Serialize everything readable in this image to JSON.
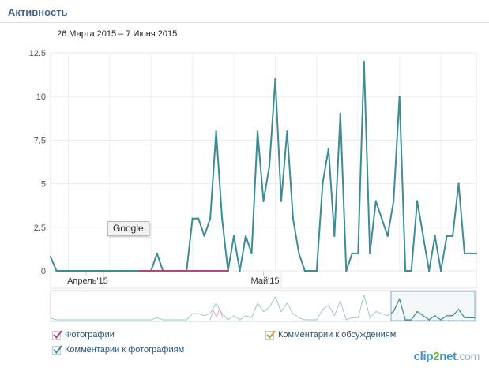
{
  "header": {
    "title": "Активность"
  },
  "date_range": "26 Марта 2015 – 7 Июня 2015",
  "tooltip": "Google",
  "legend": [
    {
      "label": "Фотографии",
      "color": "#b5467f",
      "checked": true
    },
    {
      "label": "Комментарии к фотографиям",
      "color": "#3e8c95",
      "checked": true
    },
    {
      "label": "Комментарии к обсуждениям",
      "color": "#c99e3c",
      "checked": true
    }
  ],
  "watermark": {
    "a": "clip",
    "b": "2",
    "c": "net",
    "d": ".com"
  },
  "chart_data": {
    "type": "line",
    "y_ticks": [
      "0",
      "2.5",
      "5",
      "7.5",
      "10",
      "12.5"
    ],
    "ylim": [
      0,
      12.5
    ],
    "x_ticks": [
      {
        "label": "Апрель'15",
        "day": 6
      },
      {
        "label": "Май'15",
        "day": 36
      }
    ],
    "x_start_day": 0,
    "x_end_day": 72,
    "grid": true,
    "series": [
      {
        "name": "Комментарии к фотографиям",
        "color": "#3e8c95",
        "x": [
          0,
          1,
          2,
          3,
          4,
          5,
          6,
          7,
          8,
          9,
          10,
          11,
          12,
          13,
          14,
          15,
          16,
          17,
          18,
          19,
          20,
          21,
          22,
          23,
          24,
          25,
          26,
          27,
          28,
          29,
          30,
          31,
          32,
          33,
          34,
          35,
          36,
          37,
          38,
          39,
          40,
          41,
          42,
          43,
          44,
          45,
          46,
          47,
          48,
          49,
          50,
          51,
          52,
          53,
          54,
          55,
          56,
          57,
          58,
          59,
          60,
          61,
          62,
          63,
          64,
          65,
          66,
          67,
          68,
          69,
          70,
          71,
          72
        ],
        "values": [
          0.8,
          0,
          0,
          0,
          0,
          0,
          0,
          0,
          0,
          0,
          0,
          0,
          0,
          0,
          0,
          0,
          0,
          0,
          1,
          0,
          0,
          0,
          0,
          0,
          3,
          3,
          2,
          3,
          8,
          3,
          0,
          2,
          0,
          2,
          1,
          8,
          4,
          6,
          11,
          4,
          8,
          3,
          1,
          0,
          0,
          0,
          5,
          7,
          2,
          9,
          0,
          1,
          1,
          12,
          1,
          4,
          3,
          2,
          4,
          10,
          0,
          0,
          4,
          2,
          0,
          2,
          0,
          2,
          2,
          5,
          1,
          1,
          1
        ]
      },
      {
        "name": "Фотографии",
        "color": "#b5467f",
        "x": [
          15,
          30
        ],
        "values": [
          0,
          0
        ]
      }
    ]
  }
}
